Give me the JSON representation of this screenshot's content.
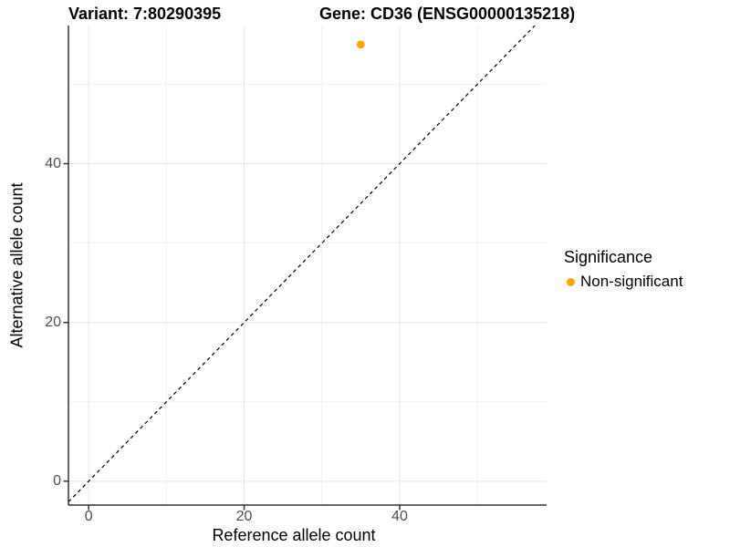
{
  "titles": {
    "variant": "Variant: 7:80290395",
    "gene": "Gene: CD36 (ENSG00000135218)"
  },
  "chart_data": {
    "type": "scatter",
    "title": "Variant: 7:80290395   Gene: CD36 (ENSG00000135218)",
    "xlabel": "Reference allele count",
    "ylabel": "Alternative allele count",
    "xlim": [
      -2.6,
      58.9
    ],
    "ylim": [
      -3.0,
      57.4
    ],
    "x_major_ticks": [
      0,
      20,
      40
    ],
    "x_minor_ticks": [
      10,
      30,
      50
    ],
    "y_major_ticks": [
      0,
      20,
      40
    ],
    "y_minor_ticks": [
      10,
      30,
      50
    ],
    "grid": true,
    "points": [
      {
        "x": 35,
        "y": 55,
        "series": "Non-significant"
      }
    ],
    "reference_line": {
      "kind": "identity",
      "equation": "y = x",
      "style": "dashed",
      "color": "#000000"
    },
    "legend": {
      "position": "right",
      "title": "Significance",
      "entries": [
        {
          "label": "Non-significant",
          "color": "#FFA500"
        }
      ]
    }
  },
  "colors": {
    "point": "#FFA500",
    "grid_major": "#e6e6e6",
    "grid_minor": "#f1f1f1",
    "axis_line": "#333333",
    "tick_label": "#4d4d4d",
    "background": "#ffffff"
  }
}
